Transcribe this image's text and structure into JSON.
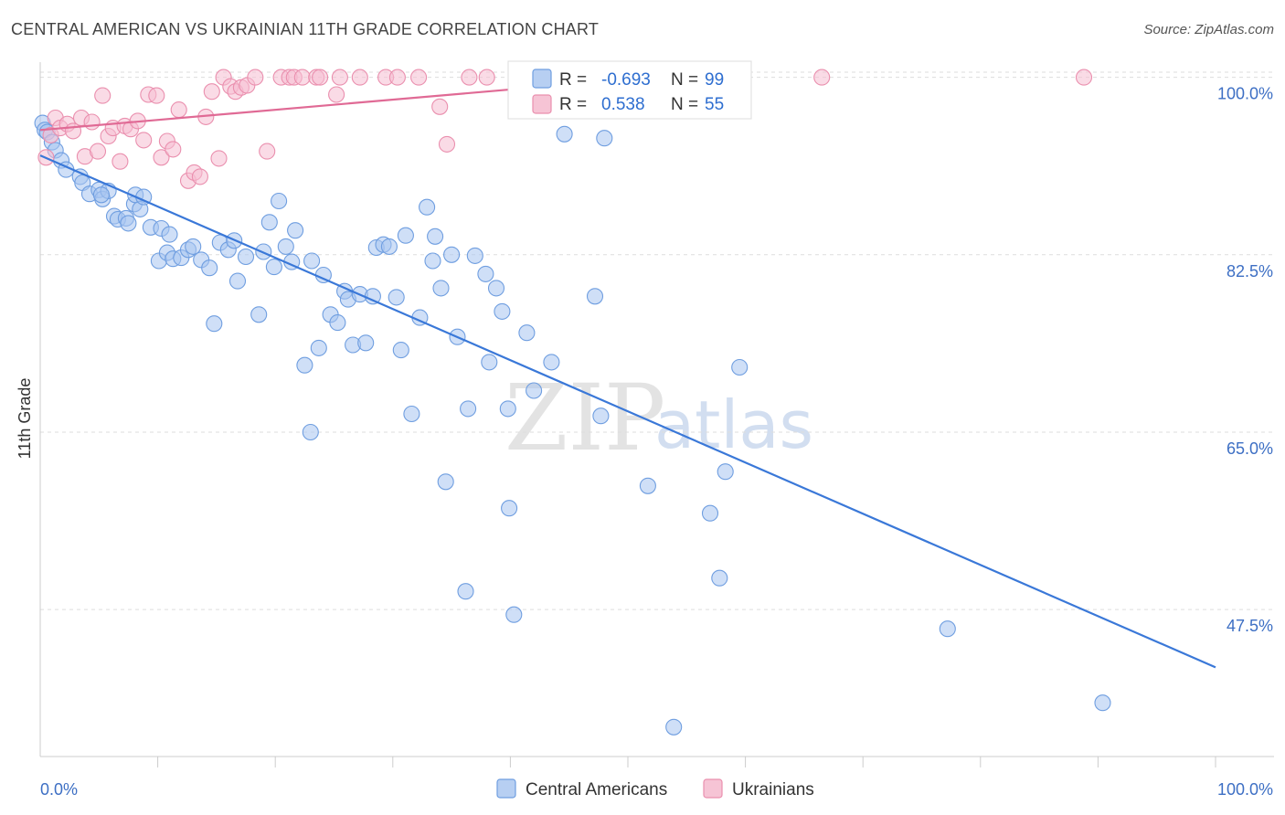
{
  "title": "CENTRAL AMERICAN VS UKRAINIAN 11TH GRADE CORRELATION CHART",
  "source": "Source: ZipAtlas.com",
  "watermark": {
    "zip": "ZIP",
    "atlas": "atlas"
  },
  "legend": {
    "r_label": "R =",
    "n_label": "N =",
    "series": [
      {
        "name": "Central Americans",
        "r": "-0.693",
        "n": "99",
        "color": "#6f9ee0",
        "fill": "#b7cff2"
      },
      {
        "name": "Ukrainians",
        "r": "0.538",
        "n": "55",
        "color": "#ea8fae",
        "fill": "#f6c4d5"
      }
    ]
  },
  "chart_data": {
    "type": "scatter",
    "title": "CENTRAL AMERICAN VS UKRAINIAN 11TH GRADE CORRELATION CHART",
    "xlabel": "",
    "ylabel": "11th Grade",
    "xlim": [
      0,
      100
    ],
    "ylim": [
      33,
      101.5
    ],
    "x_tick_labels": [
      "0.0%",
      "100.0%"
    ],
    "y_ticks": [
      {
        "value": 100,
        "label": "100.0%"
      },
      {
        "value": 82.5,
        "label": "82.5%"
      },
      {
        "value": 65,
        "label": "65.0%"
      },
      {
        "value": 47.5,
        "label": "47.5%"
      }
    ],
    "grid": true,
    "legend_position": "top-center",
    "series": [
      {
        "name": "Central Americans",
        "color": "#3a78d8",
        "trend": {
          "x": [
            0,
            100
          ],
          "y": [
            92.3,
            41.8
          ]
        },
        "points": [
          [
            0.2,
            95.5
          ],
          [
            0.4,
            94.8
          ],
          [
            0.6,
            94.6
          ],
          [
            1.0,
            93.6
          ],
          [
            1.3,
            92.8
          ],
          [
            1.8,
            91.8
          ],
          [
            2.2,
            90.9
          ],
          [
            3.4,
            90.2
          ],
          [
            3.6,
            89.6
          ],
          [
            4.2,
            88.5
          ],
          [
            5.0,
            88.9
          ],
          [
            5.3,
            88.0
          ],
          [
            5.8,
            88.8
          ],
          [
            5.2,
            88.4
          ],
          [
            6.3,
            86.3
          ],
          [
            6.6,
            86.0
          ],
          [
            7.3,
            86.1
          ],
          [
            7.5,
            85.6
          ],
          [
            8.0,
            87.5
          ],
          [
            8.1,
            88.4
          ],
          [
            8.5,
            87.0
          ],
          [
            8.8,
            88.2
          ],
          [
            9.4,
            85.2
          ],
          [
            10.1,
            81.9
          ],
          [
            10.3,
            85.1
          ],
          [
            10.8,
            82.7
          ],
          [
            11.0,
            84.5
          ],
          [
            11.3,
            82.1
          ],
          [
            12.0,
            82.2
          ],
          [
            12.6,
            83.0
          ],
          [
            13.0,
            83.3
          ],
          [
            13.7,
            82.0
          ],
          [
            14.4,
            81.2
          ],
          [
            15.3,
            83.7
          ],
          [
            14.8,
            75.7
          ],
          [
            16.0,
            83.0
          ],
          [
            16.5,
            83.9
          ],
          [
            16.8,
            79.9
          ],
          [
            17.5,
            82.3
          ],
          [
            18.6,
            76.6
          ],
          [
            19.0,
            82.8
          ],
          [
            19.5,
            85.7
          ],
          [
            19.9,
            81.3
          ],
          [
            20.3,
            87.8
          ],
          [
            20.9,
            83.3
          ],
          [
            21.4,
            81.8
          ],
          [
            21.7,
            84.9
          ],
          [
            22.5,
            71.6
          ],
          [
            23.0,
            65.0
          ],
          [
            23.1,
            81.9
          ],
          [
            23.7,
            73.3
          ],
          [
            24.1,
            80.5
          ],
          [
            24.7,
            76.6
          ],
          [
            25.3,
            75.8
          ],
          [
            25.9,
            78.9
          ],
          [
            26.2,
            78.1
          ],
          [
            26.6,
            73.6
          ],
          [
            27.2,
            78.6
          ],
          [
            27.7,
            73.8
          ],
          [
            28.3,
            78.4
          ],
          [
            28.6,
            83.2
          ],
          [
            29.2,
            83.5
          ],
          [
            29.7,
            83.3
          ],
          [
            30.3,
            78.3
          ],
          [
            30.7,
            73.1
          ],
          [
            31.1,
            84.4
          ],
          [
            31.6,
            66.8
          ],
          [
            32.3,
            76.3
          ],
          [
            32.9,
            87.2
          ],
          [
            33.4,
            81.9
          ],
          [
            33.6,
            84.3
          ],
          [
            34.1,
            79.2
          ],
          [
            34.5,
            60.1
          ],
          [
            35.0,
            82.5
          ],
          [
            35.5,
            74.4
          ],
          [
            36.2,
            49.3
          ],
          [
            36.4,
            67.3
          ],
          [
            37.0,
            82.4
          ],
          [
            37.9,
            80.6
          ],
          [
            38.2,
            71.9
          ],
          [
            38.8,
            79.2
          ],
          [
            39.3,
            76.9
          ],
          [
            39.8,
            67.3
          ],
          [
            39.9,
            57.5
          ],
          [
            40.3,
            47.0
          ],
          [
            41.4,
            74.8
          ],
          [
            42.0,
            69.1
          ],
          [
            43.5,
            71.9
          ],
          [
            44.6,
            94.4
          ],
          [
            47.2,
            78.4
          ],
          [
            47.7,
            66.6
          ],
          [
            48.0,
            94.0
          ],
          [
            51.7,
            59.7
          ],
          [
            53.9,
            35.9
          ],
          [
            57.0,
            57.0
          ],
          [
            57.8,
            50.6
          ],
          [
            58.3,
            61.1
          ],
          [
            59.5,
            71.4
          ],
          [
            77.2,
            45.6
          ],
          [
            90.4,
            38.3
          ]
        ]
      },
      {
        "name": "Ukrainians",
        "color": "#e06a95",
        "trend": {
          "x": [
            0,
            50
          ],
          "y": [
            94.8,
            99.8
          ]
        },
        "points": [
          [
            0.5,
            92.1
          ],
          [
            0.9,
            94.3
          ],
          [
            1.3,
            96.0
          ],
          [
            1.7,
            95.0
          ],
          [
            2.3,
            95.4
          ],
          [
            2.8,
            94.7
          ],
          [
            3.5,
            96.0
          ],
          [
            3.8,
            92.2
          ],
          [
            4.4,
            95.6
          ],
          [
            4.9,
            92.7
          ],
          [
            5.3,
            98.2
          ],
          [
            5.8,
            94.2
          ],
          [
            6.2,
            95.0
          ],
          [
            6.8,
            91.7
          ],
          [
            7.2,
            95.2
          ],
          [
            7.7,
            94.9
          ],
          [
            8.3,
            95.7
          ],
          [
            8.8,
            93.8
          ],
          [
            9.2,
            98.3
          ],
          [
            9.9,
            98.2
          ],
          [
            10.3,
            92.1
          ],
          [
            10.8,
            93.7
          ],
          [
            11.3,
            92.9
          ],
          [
            11.8,
            96.8
          ],
          [
            12.6,
            89.8
          ],
          [
            13.1,
            90.6
          ],
          [
            13.6,
            90.2
          ],
          [
            14.1,
            96.1
          ],
          [
            14.6,
            98.6
          ],
          [
            15.2,
            92.0
          ],
          [
            15.6,
            100.0
          ],
          [
            16.2,
            99.1
          ],
          [
            16.6,
            98.6
          ],
          [
            17.1,
            99.0
          ],
          [
            17.6,
            99.2
          ],
          [
            18.3,
            100.0
          ],
          [
            19.3,
            92.7
          ],
          [
            20.5,
            100.0
          ],
          [
            21.2,
            100.0
          ],
          [
            21.6,
            100.0
          ],
          [
            22.3,
            100.0
          ],
          [
            23.5,
            100.0
          ],
          [
            23.8,
            100.0
          ],
          [
            25.2,
            98.3
          ],
          [
            25.5,
            100.0
          ],
          [
            27.2,
            100.0
          ],
          [
            29.4,
            100.0
          ],
          [
            30.4,
            100.0
          ],
          [
            32.2,
            100.0
          ],
          [
            34.0,
            97.1
          ],
          [
            34.6,
            93.4
          ],
          [
            36.5,
            100.0
          ],
          [
            38.0,
            100.0
          ],
          [
            66.5,
            100.0
          ],
          [
            88.8,
            100.0
          ]
        ]
      }
    ]
  }
}
